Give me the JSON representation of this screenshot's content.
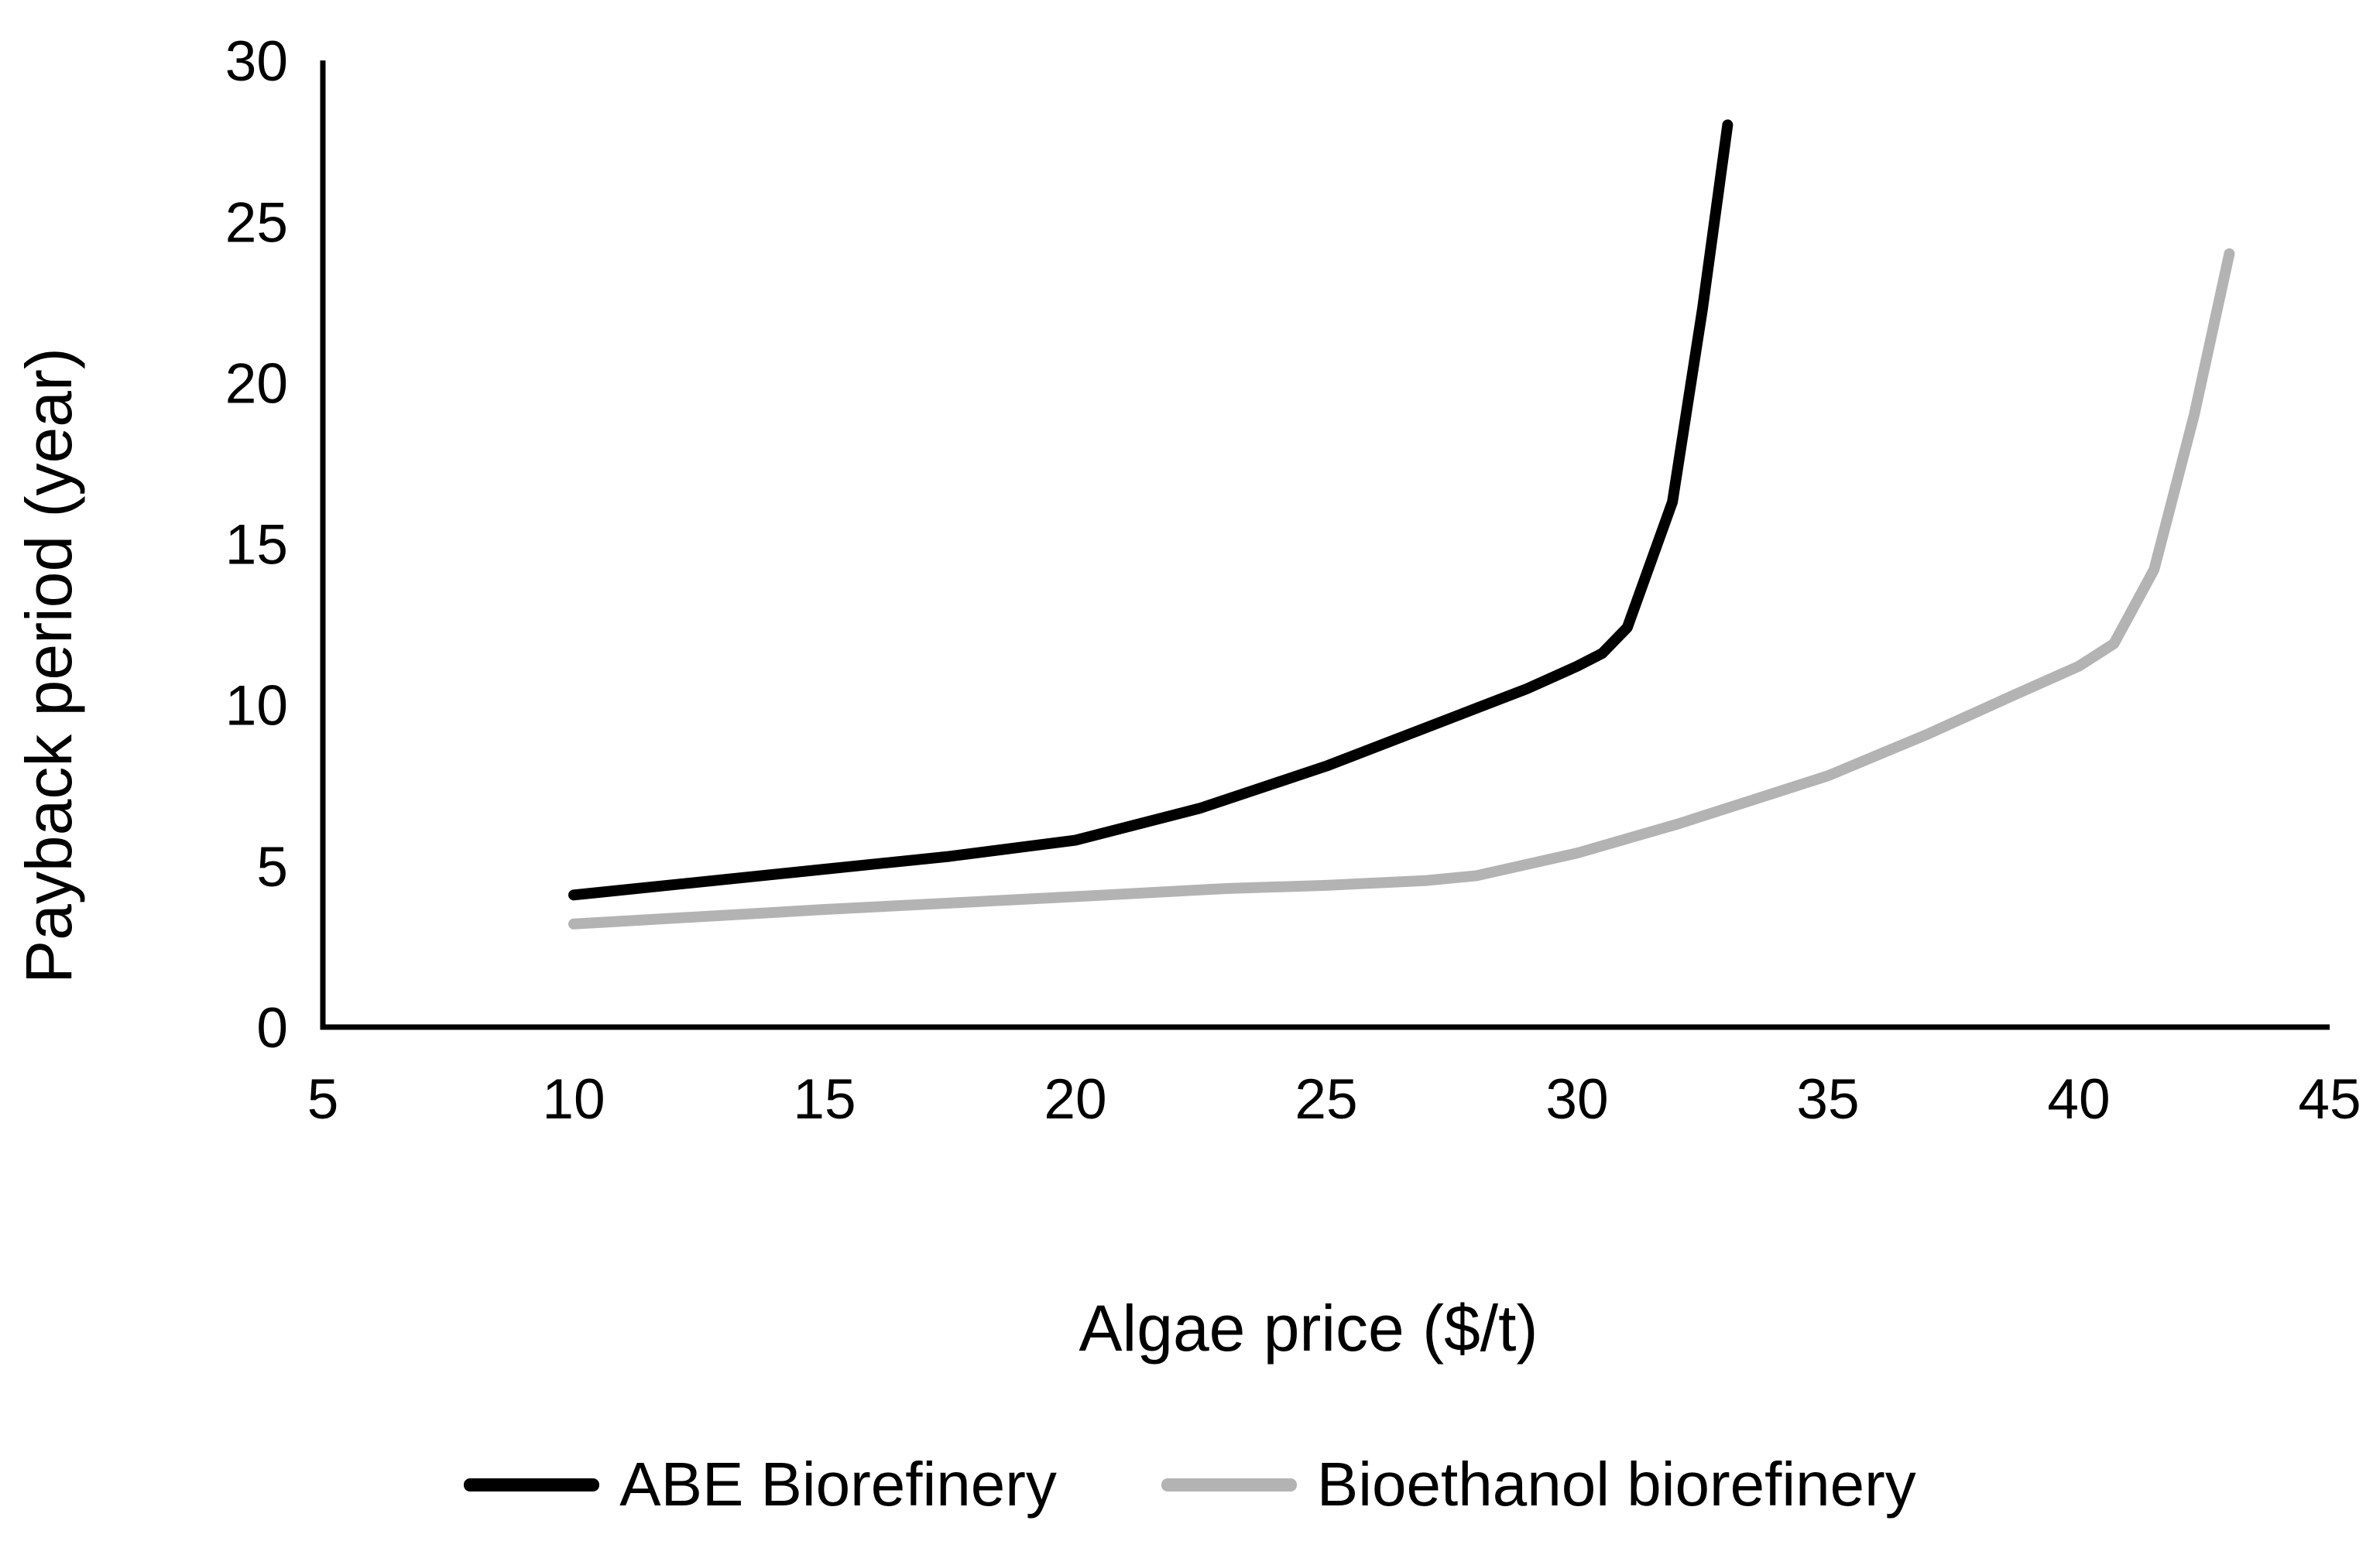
{
  "chart_data": {
    "type": "line",
    "title": "",
    "xlabel": "Algae price ($/t)",
    "ylabel": "Payback period (year)",
    "xlim": [
      5,
      45
    ],
    "ylim": [
      0,
      30
    ],
    "x_ticks": [
      5,
      10,
      15,
      20,
      25,
      30,
      35,
      40,
      45
    ],
    "y_ticks": [
      0,
      5,
      10,
      15,
      20,
      25,
      30
    ],
    "grid": false,
    "legend_position": "bottom-center",
    "axis_color": "#000000",
    "series": [
      {
        "name": "ABE Biorefinery",
        "color": "#000000",
        "points": [
          [
            10,
            4.1
          ],
          [
            12.5,
            4.5
          ],
          [
            15,
            4.9
          ],
          [
            17.5,
            5.3
          ],
          [
            20,
            5.8
          ],
          [
            22.5,
            6.8
          ],
          [
            25,
            8.1
          ],
          [
            27.5,
            9.6
          ],
          [
            29,
            10.5
          ],
          [
            30,
            11.2
          ],
          [
            30.5,
            11.6
          ],
          [
            31,
            12.4
          ],
          [
            31.9,
            16.3
          ],
          [
            32.5,
            22.3
          ],
          [
            33,
            28
          ]
        ]
      },
      {
        "name": "Bioethanol biorefinery",
        "color": "#b3b3b3",
        "points": [
          [
            10,
            3.2
          ],
          [
            15,
            3.65
          ],
          [
            20,
            4.05
          ],
          [
            23,
            4.3
          ],
          [
            25,
            4.4
          ],
          [
            27,
            4.55
          ],
          [
            28,
            4.7
          ],
          [
            30,
            5.4
          ],
          [
            32,
            6.3
          ],
          [
            35,
            7.8
          ],
          [
            37,
            9.1
          ],
          [
            38.7,
            10.3
          ],
          [
            40,
            11.2
          ],
          [
            40.7,
            11.9
          ],
          [
            41.5,
            14.2
          ],
          [
            42.3,
            19
          ],
          [
            43,
            24
          ]
        ]
      }
    ]
  }
}
